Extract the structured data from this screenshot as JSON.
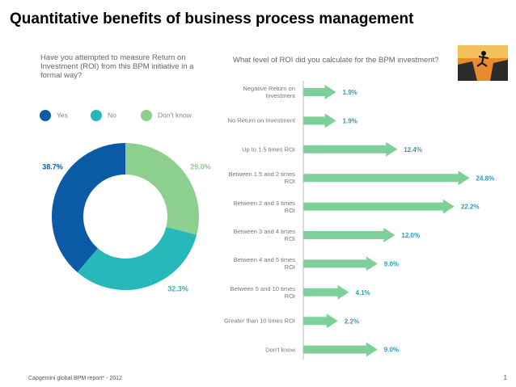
{
  "title": "Quantitative benefits of business process management",
  "chart_data": [
    {
      "type": "donut",
      "title": "Have you attempted to measure Return on Investment (ROI) from this BPM initiative in a formal way?",
      "categories": [
        "Yes",
        "No",
        "Don't know"
      ],
      "values": [
        38.7,
        32.3,
        29.0
      ],
      "value_labels": [
        "38.7%",
        "32.3%",
        "29.0%"
      ],
      "colors": [
        "#0b5aa6",
        "#27b9b9",
        "#8ccf8e"
      ]
    },
    {
      "type": "arrow-bar",
      "title": "What level of ROI did you calculate for the BPM investment?",
      "categories": [
        "Negative Return on Investment",
        "No Return on Investment",
        "Up to 1.5 times ROI",
        "Between 1.5 and 2 times ROI",
        "Between 2 and 3 times ROI",
        "Between 3 and 4 times ROI",
        "Between 4 and 5 times ROI",
        "Between 5 and 10 times ROI",
        "Greater than 10 times ROI",
        "Don't know"
      ],
      "values": [
        1.9,
        1.9,
        12.4,
        24.8,
        22.2,
        12.0,
        9.0,
        4.1,
        2.2,
        9.0
      ],
      "value_labels": [
        "1.9%",
        "1.9%",
        "12.4%",
        "24.8%",
        "22.2%",
        "12.0%",
        "9.0%",
        "4.1%",
        "2.2%",
        "9.0%"
      ],
      "color": "#7fcf98"
    }
  ],
  "footer": "Capgemini global BPM report* - 2012",
  "page_number": "1"
}
